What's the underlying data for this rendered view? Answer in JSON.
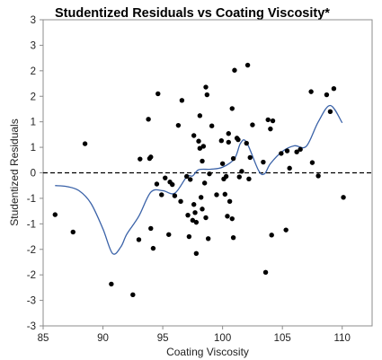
{
  "chart_data": {
    "type": "scatter",
    "title": "Studentized Residuals vs Coating Viscosity*",
    "xlabel": "Coating Viscosity",
    "ylabel": "Studentized Residuals",
    "xlim": [
      85,
      112.5
    ],
    "ylim": [
      -3,
      3
    ],
    "x_ticks": [
      85,
      90,
      95,
      100,
      105,
      110
    ],
    "x_tick_labels": [
      "85",
      "90",
      "95",
      "100",
      "105",
      "110"
    ],
    "y_ticks": [
      3,
      2.5,
      2,
      1.5,
      1,
      0.5,
      0,
      -0.5,
      -1,
      -1.5,
      -2,
      -2.5,
      -3
    ],
    "y_tick_labels": [
      "3",
      "3",
      "2",
      "2",
      "1",
      "1",
      "0",
      "-1",
      "-1",
      "-2",
      "-2",
      "-3",
      "-3"
    ],
    "reference_line": {
      "y": 0,
      "style": "dashed",
      "color": "#000000"
    },
    "grid": false,
    "legend": "none",
    "point_color": "#000000",
    "smoother_color": "#3a62a8",
    "series": [
      {
        "values": [
          [
            86.0,
            -0.82
          ],
          [
            87.5,
            -1.16
          ],
          [
            88.5,
            0.57
          ],
          [
            90.7,
            -2.18
          ],
          [
            92.5,
            -2.39
          ],
          [
            93.0,
            -1.31
          ],
          [
            93.1,
            0.27
          ],
          [
            93.8,
            1.05
          ],
          [
            93.9,
            0.28
          ],
          [
            94.0,
            0.31
          ],
          [
            94.0,
            -1.09
          ],
          [
            94.2,
            -1.48
          ],
          [
            94.5,
            -0.22
          ],
          [
            94.6,
            1.55
          ],
          [
            94.9,
            -0.43
          ],
          [
            95.2,
            -0.1
          ],
          [
            95.5,
            -1.21
          ],
          [
            95.6,
            -0.18
          ],
          [
            95.8,
            -0.23
          ],
          [
            96.0,
            -0.45
          ],
          [
            96.3,
            0.93
          ],
          [
            96.5,
            -0.56
          ],
          [
            96.6,
            1.42
          ],
          [
            97.0,
            -0.07
          ],
          [
            97.1,
            -0.83
          ],
          [
            97.2,
            -1.25
          ],
          [
            97.3,
            -0.13
          ],
          [
            97.5,
            -0.93
          ],
          [
            97.6,
            -0.62
          ],
          [
            97.6,
            0.73
          ],
          [
            97.7,
            -0.78
          ],
          [
            97.8,
            -0.97
          ],
          [
            97.8,
            -1.58
          ],
          [
            98.0,
            0.62
          ],
          [
            98.1,
            0.48
          ],
          [
            98.1,
            1.12
          ],
          [
            98.2,
            -0.48
          ],
          [
            98.3,
            0.23
          ],
          [
            98.3,
            -0.71
          ],
          [
            98.4,
            0.52
          ],
          [
            98.5,
            -0.2
          ],
          [
            98.6,
            1.68
          ],
          [
            98.6,
            -0.88
          ],
          [
            98.7,
            1.53
          ],
          [
            98.8,
            -1.29
          ],
          [
            98.9,
            -0.02
          ],
          [
            99.1,
            0.92
          ],
          [
            99.5,
            -0.43
          ],
          [
            99.9,
            0.63
          ],
          [
            100.0,
            0.18
          ],
          [
            100.1,
            -0.12
          ],
          [
            100.2,
            -0.42
          ],
          [
            100.3,
            -0.07
          ],
          [
            100.4,
            -0.85
          ],
          [
            100.5,
            0.6
          ],
          [
            100.5,
            0.77
          ],
          [
            100.6,
            -0.56
          ],
          [
            100.8,
            -0.9
          ],
          [
            100.8,
            1.26
          ],
          [
            100.9,
            0.28
          ],
          [
            100.9,
            -1.27
          ],
          [
            101.0,
            2.01
          ],
          [
            101.2,
            0.68
          ],
          [
            101.3,
            0.65
          ],
          [
            101.4,
            -0.08
          ],
          [
            101.6,
            0.03
          ],
          [
            102.0,
            0.58
          ],
          [
            102.1,
            2.11
          ],
          [
            102.2,
            -0.12
          ],
          [
            102.3,
            0.3
          ],
          [
            102.5,
            0.94
          ],
          [
            103.4,
            0.21
          ],
          [
            103.6,
            -1.95
          ],
          [
            103.8,
            1.04
          ],
          [
            104.0,
            0.86
          ],
          [
            104.1,
            -1.22
          ],
          [
            104.2,
            1.02
          ],
          [
            104.9,
            0.38
          ],
          [
            105.3,
            -1.12
          ],
          [
            105.4,
            0.43
          ],
          [
            105.6,
            0.09
          ],
          [
            106.2,
            0.41
          ],
          [
            106.5,
            0.46
          ],
          [
            107.4,
            1.59
          ],
          [
            107.5,
            0.2
          ],
          [
            108.0,
            -0.06
          ],
          [
            108.7,
            1.53
          ],
          [
            109.0,
            1.2
          ],
          [
            109.3,
            1.65
          ],
          [
            110.1,
            -0.48
          ]
        ]
      }
    ],
    "smoother": {
      "x": [
        86.0,
        87.0,
        88.0,
        89.0,
        90.0,
        90.8,
        91.5,
        92.0,
        93.0,
        94.0,
        95.0,
        96.0,
        97.0,
        97.5,
        98.0,
        99.0,
        100.0,
        101.0,
        101.5,
        102.0,
        103.0,
        103.5,
        104.0,
        105.0,
        106.0,
        107.0,
        108.0,
        109.0,
        110.0
      ],
      "y": [
        -0.25,
        -0.27,
        -0.35,
        -0.6,
        -1.1,
        -1.58,
        -1.45,
        -1.2,
        -0.85,
        -0.38,
        -0.35,
        -0.4,
        -0.08,
        -0.06,
        0.06,
        0.07,
        0.11,
        0.28,
        0.58,
        0.6,
        0.05,
        -0.02,
        0.18,
        0.42,
        0.53,
        0.52,
        1.0,
        1.32,
        0.98
      ]
    }
  }
}
